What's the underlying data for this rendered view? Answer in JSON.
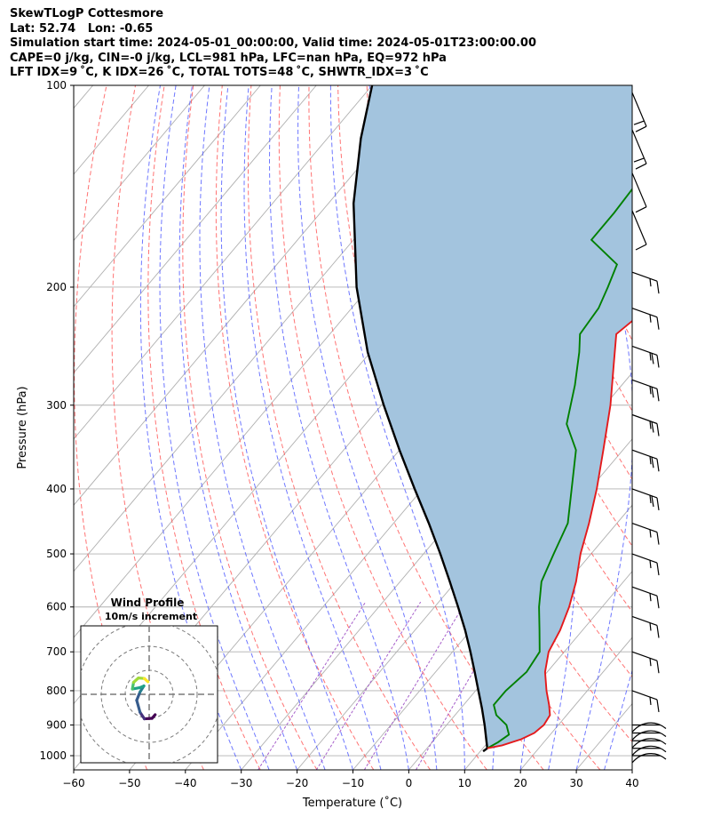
{
  "header": {
    "line1": "SkewTLogP Cottesmore",
    "line2": "Lat: 52.74   Lon: -0.65",
    "line3": "Simulation start time: 2024-05-01_00:00:00, Valid time: 2024-05-01T23:00:00.00",
    "line4": "CAPE=0 j/kg, CIN=-0 j/kg, LCL=981 hPa, LFC=nan hPa, EQ=972 hPa",
    "line5": "LFT IDX=9 ˚C, K IDX=26 ˚C, TOTAL TOTS=48 ˚C, SHWTR_IDX=3 ˚C"
  },
  "chart_data": {
    "type": "line",
    "xlabel": "Temperature (˚C)",
    "ylabel": "Pressure (hPa)",
    "xlim": [
      -60,
      40
    ],
    "ylim": [
      1050,
      100
    ],
    "y_scale": "log",
    "skew": "skew-T",
    "grid": true,
    "x_ticks": [
      "−60",
      "−50",
      "−40",
      "−30",
      "−20",
      "−10",
      "0",
      "10",
      "20",
      "30",
      "40"
    ],
    "y_ticks": [
      "100",
      "200",
      "300",
      "400",
      "500",
      "600",
      "700",
      "800",
      "900",
      "1000"
    ],
    "colors": {
      "temperature": "#e41a1c",
      "dewpoint": "#008000",
      "parcel": "#000000",
      "shade": "#a3c4de",
      "dry_adiabat": "#ff5a5a",
      "moist_adiabat": "#4a55ff",
      "mixing_ratio": "#9c4dc4",
      "isotherm": "#b0b0b0"
    },
    "temperature": [
      {
        "p": 975,
        "t": 10.8
      },
      {
        "p": 965,
        "t": 13.0
      },
      {
        "p": 945,
        "t": 15.5
      },
      {
        "p": 925,
        "t": 16.9
      },
      {
        "p": 900,
        "t": 17.4
      },
      {
        "p": 870,
        "t": 17.0
      },
      {
        "p": 840,
        "t": 15.3
      },
      {
        "p": 800,
        "t": 12.7
      },
      {
        "p": 750,
        "t": 9.6
      },
      {
        "p": 700,
        "t": 7.2
      },
      {
        "p": 650,
        "t": 6.0
      },
      {
        "p": 600,
        "t": 4.1
      },
      {
        "p": 550,
        "t": 1.5
      },
      {
        "p": 500,
        "t": -1.9
      },
      {
        "p": 450,
        "t": -5.0
      },
      {
        "p": 400,
        "t": -8.8
      },
      {
        "p": 350,
        "t": -13.5
      },
      {
        "p": 300,
        "t": -19.0
      },
      {
        "p": 260,
        "t": -24.7
      },
      {
        "p": 235,
        "t": -28.7
      },
      {
        "p": 215,
        "t": -27.0
      },
      {
        "p": 200,
        "t": -27.7
      },
      {
        "p": 180,
        "t": -29.1
      },
      {
        "p": 170,
        "t": -30.6
      },
      {
        "p": 155,
        "t": -31.3
      },
      {
        "p": 140,
        "t": -32.8
      },
      {
        "p": 125,
        "t": -33.0
      },
      {
        "p": 110,
        "t": -34.4
      },
      {
        "p": 100,
        "t": -35.3
      }
    ],
    "dewpoint": [
      {
        "p": 975,
        "t": 10.8
      },
      {
        "p": 955,
        "t": 11.8
      },
      {
        "p": 930,
        "t": 12.6
      },
      {
        "p": 900,
        "t": 10.7
      },
      {
        "p": 870,
        "t": 7.4
      },
      {
        "p": 840,
        "t": 5.4
      },
      {
        "p": 800,
        "t": 5.4
      },
      {
        "p": 750,
        "t": 6.3
      },
      {
        "p": 700,
        "t": 5.6
      },
      {
        "p": 650,
        "t": 2.3
      },
      {
        "p": 600,
        "t": -1.3
      },
      {
        "p": 550,
        "t": -4.7
      },
      {
        "p": 500,
        "t": -6.7
      },
      {
        "p": 450,
        "t": -8.8
      },
      {
        "p": 400,
        "t": -13.3
      },
      {
        "p": 350,
        "t": -18.4
      },
      {
        "p": 320,
        "t": -24.0
      },
      {
        "p": 280,
        "t": -28.4
      },
      {
        "p": 250,
        "t": -32.6
      },
      {
        "p": 235,
        "t": -35.2
      },
      {
        "p": 215,
        "t": -35.8
      },
      {
        "p": 200,
        "t": -37.3
      },
      {
        "p": 185,
        "t": -39.1
      },
      {
        "p": 170,
        "t": -47.4
      },
      {
        "p": 155,
        "t": -47.4
      },
      {
        "p": 135,
        "t": -48.0
      },
      {
        "p": 115,
        "t": -49.3
      },
      {
        "p": 100,
        "t": -50.3
      }
    ],
    "parcel": [
      {
        "p": 985,
        "t": 10.5
      },
      {
        "p": 975,
        "t": 10.8
      },
      {
        "p": 950,
        "t": 9.5
      },
      {
        "p": 900,
        "t": 6.8
      },
      {
        "p": 850,
        "t": 3.8
      },
      {
        "p": 800,
        "t": 0.5
      },
      {
        "p": 750,
        "t": -3.0
      },
      {
        "p": 700,
        "t": -6.8
      },
      {
        "p": 650,
        "t": -11.0
      },
      {
        "p": 600,
        "t": -15.8
      },
      {
        "p": 550,
        "t": -21.1
      },
      {
        "p": 500,
        "t": -27.0
      },
      {
        "p": 450,
        "t": -33.7
      },
      {
        "p": 400,
        "t": -41.4
      },
      {
        "p": 350,
        "t": -50.0
      },
      {
        "p": 300,
        "t": -59.6
      },
      {
        "p": 250,
        "t": -70.5
      },
      {
        "p": 200,
        "t": -82.3
      },
      {
        "p": 150,
        "t": -95.5
      },
      {
        "p": 120,
        "t": -104.0
      },
      {
        "p": 100,
        "t": -110.0
      }
    ],
    "wind_profile": {
      "title": "Wind Profile",
      "subtitle": "10m/s increment",
      "hodograph": [
        {
          "u": 2.5,
          "v": -8.5
        },
        {
          "u": 1.2,
          "v": -10.0
        },
        {
          "u": -2.0,
          "v": -10.2
        },
        {
          "u": -3.8,
          "v": -7.5
        },
        {
          "u": -5.2,
          "v": -2.5
        },
        {
          "u": -3.8,
          "v": 1.0
        },
        {
          "u": -2.2,
          "v": 3.5
        },
        {
          "u": -3.8,
          "v": 2.8
        },
        {
          "u": -7.0,
          "v": 2.2
        },
        {
          "u": -6.5,
          "v": 5.0
        },
        {
          "u": -4.5,
          "v": 6.8
        },
        {
          "u": -2.0,
          "v": 6.6
        },
        {
          "u": -0.5,
          "v": 5.2
        }
      ]
    },
    "barbs": [
      {
        "p": 1000,
        "kind": "calm"
      },
      {
        "p": 975,
        "kind": "calm"
      },
      {
        "p": 950,
        "kind": "calm"
      },
      {
        "p": 925,
        "kind": "calm"
      },
      {
        "p": 900,
        "kind": "calm"
      },
      {
        "p": 800,
        "kind": "b1"
      },
      {
        "p": 700,
        "kind": "b1"
      },
      {
        "p": 620,
        "kind": "b1"
      },
      {
        "p": 560,
        "kind": "b1"
      },
      {
        "p": 500,
        "kind": "b1"
      },
      {
        "p": 450,
        "kind": "b1"
      },
      {
        "p": 400,
        "kind": "b2"
      },
      {
        "p": 350,
        "kind": "b2"
      },
      {
        "p": 310,
        "kind": "b2"
      },
      {
        "p": 275,
        "kind": "b2"
      },
      {
        "p": 245,
        "kind": "b2"
      },
      {
        "p": 215,
        "kind": "b1"
      },
      {
        "p": 190,
        "kind": "b1"
      },
      {
        "p": 165,
        "kind": "b3"
      },
      {
        "p": 145,
        "kind": "b3"
      },
      {
        "p": 125,
        "kind": "b4"
      },
      {
        "p": 110,
        "kind": "b4"
      }
    ]
  }
}
